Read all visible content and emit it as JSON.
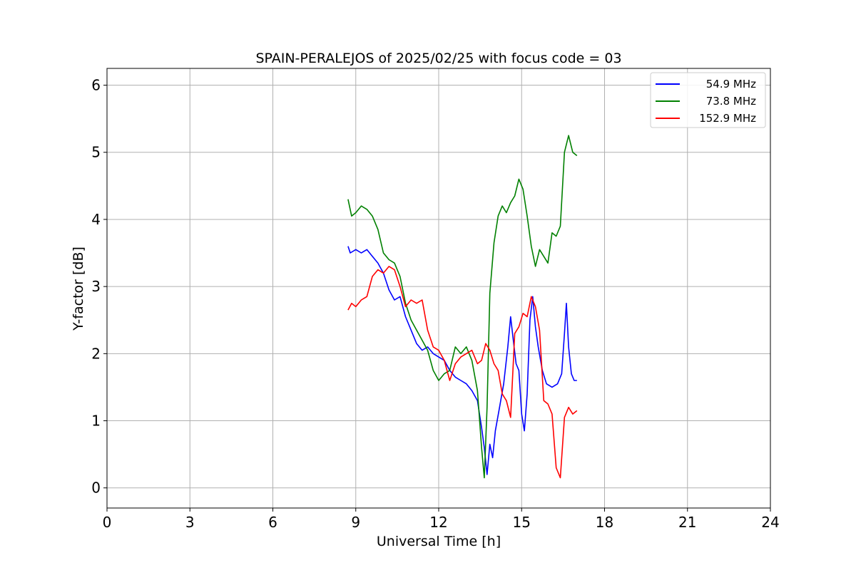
{
  "chart_data": {
    "type": "line",
    "title": "SPAIN-PERALEJOS of 2025/02/25 with focus code = 03",
    "xlabel": "Universal Time [h]",
    "ylabel": "Y-factor [dB]",
    "xlim": [
      0,
      24
    ],
    "ylim": [
      -0.3,
      6.25
    ],
    "xticks": [
      0,
      3,
      6,
      9,
      12,
      15,
      18,
      21,
      24
    ],
    "yticks": [
      0,
      1,
      2,
      3,
      4,
      5,
      6
    ],
    "grid": true,
    "legend_position": "top-right",
    "series": [
      {
        "name": "  54.9 MHz",
        "color": "#0000ff",
        "points": [
          [
            8.72,
            3.6
          ],
          [
            8.8,
            3.5
          ],
          [
            9.0,
            3.55
          ],
          [
            9.2,
            3.5
          ],
          [
            9.4,
            3.55
          ],
          [
            9.6,
            3.45
          ],
          [
            9.8,
            3.35
          ],
          [
            10.0,
            3.2
          ],
          [
            10.2,
            2.95
          ],
          [
            10.4,
            2.8
          ],
          [
            10.6,
            2.85
          ],
          [
            10.8,
            2.55
          ],
          [
            11.0,
            2.35
          ],
          [
            11.2,
            2.15
          ],
          [
            11.4,
            2.05
          ],
          [
            11.6,
            2.1
          ],
          [
            11.8,
            2.0
          ],
          [
            12.0,
            1.95
          ],
          [
            12.2,
            1.9
          ],
          [
            12.4,
            1.75
          ],
          [
            12.6,
            1.65
          ],
          [
            12.8,
            1.6
          ],
          [
            13.0,
            1.55
          ],
          [
            13.2,
            1.45
          ],
          [
            13.4,
            1.3
          ],
          [
            13.55,
            0.9
          ],
          [
            13.65,
            0.6
          ],
          [
            13.75,
            0.2
          ],
          [
            13.85,
            0.65
          ],
          [
            13.95,
            0.45
          ],
          [
            14.05,
            0.85
          ],
          [
            14.2,
            1.2
          ],
          [
            14.35,
            1.55
          ],
          [
            14.5,
            2.1
          ],
          [
            14.6,
            2.55
          ],
          [
            14.7,
            2.2
          ],
          [
            14.8,
            1.85
          ],
          [
            14.9,
            1.75
          ],
          [
            15.0,
            1.1
          ],
          [
            15.1,
            0.85
          ],
          [
            15.2,
            1.4
          ],
          [
            15.3,
            2.5
          ],
          [
            15.4,
            2.85
          ],
          [
            15.5,
            2.4
          ],
          [
            15.6,
            2.1
          ],
          [
            15.75,
            1.75
          ],
          [
            15.9,
            1.55
          ],
          [
            16.1,
            1.5
          ],
          [
            16.3,
            1.55
          ],
          [
            16.45,
            1.7
          ],
          [
            16.55,
            2.3
          ],
          [
            16.62,
            2.75
          ],
          [
            16.7,
            2.1
          ],
          [
            16.8,
            1.7
          ],
          [
            16.9,
            1.6
          ],
          [
            17.0,
            1.6
          ]
        ]
      },
      {
        "name": "  73.8 MHz",
        "color": "#008000",
        "points": [
          [
            8.72,
            4.3
          ],
          [
            8.85,
            4.05
          ],
          [
            9.0,
            4.1
          ],
          [
            9.2,
            4.2
          ],
          [
            9.4,
            4.15
          ],
          [
            9.6,
            4.05
          ],
          [
            9.8,
            3.85
          ],
          [
            10.0,
            3.5
          ],
          [
            10.2,
            3.4
          ],
          [
            10.4,
            3.35
          ],
          [
            10.6,
            3.15
          ],
          [
            10.8,
            2.75
          ],
          [
            11.0,
            2.5
          ],
          [
            11.2,
            2.35
          ],
          [
            11.4,
            2.2
          ],
          [
            11.6,
            2.05
          ],
          [
            11.8,
            1.75
          ],
          [
            12.0,
            1.6
          ],
          [
            12.2,
            1.7
          ],
          [
            12.4,
            1.75
          ],
          [
            12.6,
            2.1
          ],
          [
            12.8,
            2.0
          ],
          [
            13.0,
            2.1
          ],
          [
            13.2,
            1.9
          ],
          [
            13.4,
            1.45
          ],
          [
            13.55,
            0.6
          ],
          [
            13.65,
            0.15
          ],
          [
            13.75,
            1.2
          ],
          [
            13.85,
            2.9
          ],
          [
            14.0,
            3.65
          ],
          [
            14.15,
            4.05
          ],
          [
            14.3,
            4.2
          ],
          [
            14.45,
            4.1
          ],
          [
            14.6,
            4.25
          ],
          [
            14.75,
            4.35
          ],
          [
            14.9,
            4.6
          ],
          [
            15.05,
            4.45
          ],
          [
            15.2,
            4.05
          ],
          [
            15.35,
            3.6
          ],
          [
            15.5,
            3.3
          ],
          [
            15.65,
            3.55
          ],
          [
            15.8,
            3.45
          ],
          [
            15.95,
            3.35
          ],
          [
            16.1,
            3.8
          ],
          [
            16.25,
            3.75
          ],
          [
            16.4,
            3.9
          ],
          [
            16.55,
            5.0
          ],
          [
            16.7,
            5.25
          ],
          [
            16.85,
            5.0
          ],
          [
            17.0,
            4.95
          ]
        ]
      },
      {
        "name": "152.9 MHz",
        "color": "#ff0000",
        "points": [
          [
            8.72,
            2.65
          ],
          [
            8.85,
            2.75
          ],
          [
            9.0,
            2.7
          ],
          [
            9.2,
            2.8
          ],
          [
            9.4,
            2.85
          ],
          [
            9.6,
            3.15
          ],
          [
            9.8,
            3.25
          ],
          [
            10.0,
            3.2
          ],
          [
            10.2,
            3.3
          ],
          [
            10.4,
            3.25
          ],
          [
            10.6,
            3.0
          ],
          [
            10.8,
            2.7
          ],
          [
            11.0,
            2.8
          ],
          [
            11.2,
            2.75
          ],
          [
            11.4,
            2.8
          ],
          [
            11.6,
            2.35
          ],
          [
            11.8,
            2.1
          ],
          [
            12.0,
            2.05
          ],
          [
            12.2,
            1.9
          ],
          [
            12.4,
            1.6
          ],
          [
            12.6,
            1.85
          ],
          [
            12.8,
            1.95
          ],
          [
            13.0,
            2.0
          ],
          [
            13.2,
            2.05
          ],
          [
            13.4,
            1.85
          ],
          [
            13.55,
            1.9
          ],
          [
            13.7,
            2.15
          ],
          [
            13.85,
            2.05
          ],
          [
            14.0,
            1.85
          ],
          [
            14.15,
            1.75
          ],
          [
            14.3,
            1.4
          ],
          [
            14.45,
            1.3
          ],
          [
            14.6,
            1.05
          ],
          [
            14.75,
            2.3
          ],
          [
            14.9,
            2.4
          ],
          [
            15.05,
            2.6
          ],
          [
            15.2,
            2.55
          ],
          [
            15.35,
            2.85
          ],
          [
            15.5,
            2.7
          ],
          [
            15.65,
            2.35
          ],
          [
            15.8,
            1.3
          ],
          [
            15.95,
            1.25
          ],
          [
            16.1,
            1.1
          ],
          [
            16.25,
            0.3
          ],
          [
            16.4,
            0.15
          ],
          [
            16.55,
            1.05
          ],
          [
            16.7,
            1.2
          ],
          [
            16.85,
            1.1
          ],
          [
            17.0,
            1.15
          ]
        ]
      }
    ]
  }
}
